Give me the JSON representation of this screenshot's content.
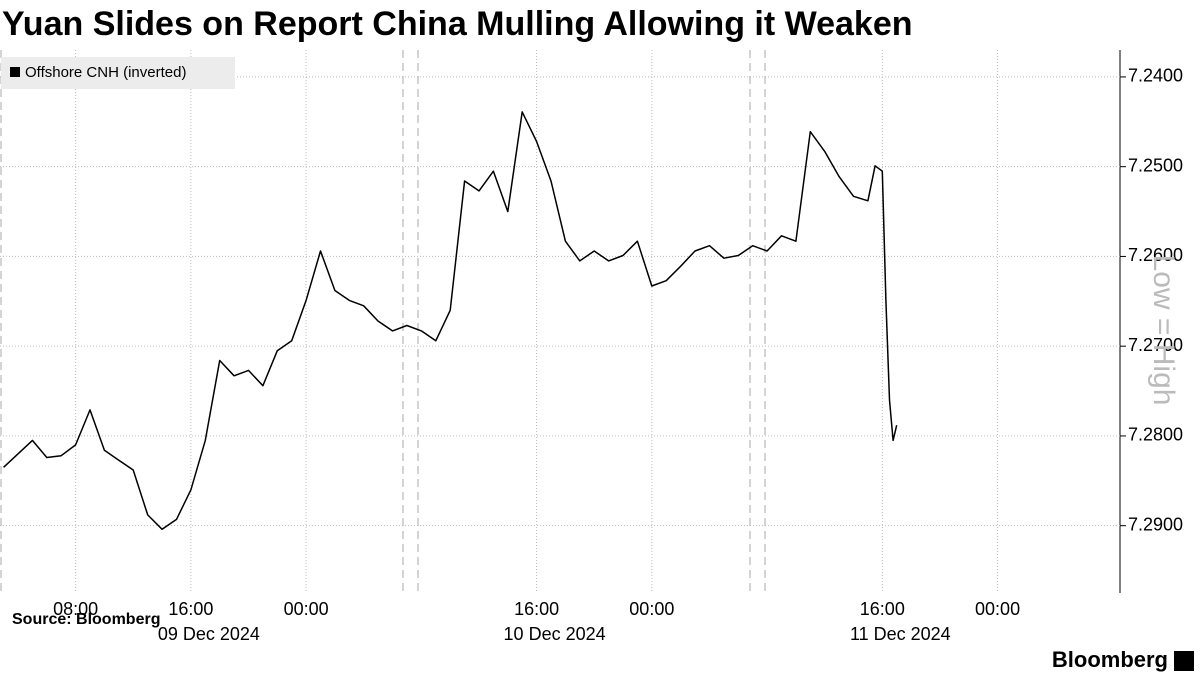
{
  "chart_data": {
    "type": "line",
    "title": "Yuan Slides on Report China Mulling Allowing it Weaken",
    "source": "Source: Bloomberg",
    "brand": "Bloomberg",
    "annotation": "Low = High",
    "legend": "top-left",
    "grid": true,
    "xlim": [
      "2024-12-09T02:45",
      "2024-12-12T08:30"
    ],
    "xticks": [
      {
        "value": "2024-12-09T08:00",
        "label": "08:00"
      },
      {
        "value": "2024-12-09T16:00",
        "label": "16:00"
      },
      {
        "value": "2024-12-10T00:00",
        "label": "00:00"
      },
      {
        "value": "2024-12-10T16:00",
        "label": "16:00"
      },
      {
        "value": "2024-12-11T00:00",
        "label": "00:00"
      },
      {
        "value": "2024-12-11T16:00",
        "label": "16:00"
      },
      {
        "value": "2024-12-12T00:00",
        "label": "00:00"
      }
    ],
    "x_dates": [
      {
        "value": "2024-12-09T16:00",
        "label": "09 Dec 2024"
      },
      {
        "value": "2024-12-10T16:00",
        "label": "10 Dec 2024"
      },
      {
        "value": "2024-12-11T16:00",
        "label": "11 Dec 2024"
      }
    ],
    "ylim": [
      7.2975,
      7.237
    ],
    "yticks": [
      {
        "value": 7.24,
        "label": "7.2400"
      },
      {
        "value": 7.25,
        "label": "7.2500"
      },
      {
        "value": 7.26,
        "label": "7.2600"
      },
      {
        "value": 7.27,
        "label": "7.2700"
      },
      {
        "value": 7.28,
        "label": "7.2800"
      },
      {
        "value": 7.29,
        "label": "7.2900"
      }
    ],
    "x": [
      "2024-12-09T03:00",
      "2024-12-09T05:00",
      "2024-12-09T06:00",
      "2024-12-09T07:00",
      "2024-12-09T08:00",
      "2024-12-09T09:00",
      "2024-12-09T10:00",
      "2024-12-09T11:00",
      "2024-12-09T12:00",
      "2024-12-09T13:00",
      "2024-12-09T14:00",
      "2024-12-09T15:00",
      "2024-12-09T16:00",
      "2024-12-09T17:00",
      "2024-12-09T18:00",
      "2024-12-09T19:00",
      "2024-12-09T20:00",
      "2024-12-09T21:00",
      "2024-12-09T22:00",
      "2024-12-09T23:00",
      "2024-12-10T00:00",
      "2024-12-10T01:00",
      "2024-12-10T02:00",
      "2024-12-10T03:00",
      "2024-12-10T04:00",
      "2024-12-10T05:00",
      "2024-12-10T06:00",
      "2024-12-10T07:00",
      "2024-12-10T08:00",
      "2024-12-10T09:00",
      "2024-12-10T10:00",
      "2024-12-10T11:00",
      "2024-12-10T12:00",
      "2024-12-10T13:00",
      "2024-12-10T14:00",
      "2024-12-10T15:00",
      "2024-12-10T16:00",
      "2024-12-10T17:00",
      "2024-12-10T18:00",
      "2024-12-10T19:00",
      "2024-12-10T20:00",
      "2024-12-10T21:00",
      "2024-12-10T22:00",
      "2024-12-10T23:00",
      "2024-12-11T00:00",
      "2024-12-11T01:00",
      "2024-12-11T02:00",
      "2024-12-11T03:00",
      "2024-12-11T04:00",
      "2024-12-11T05:00",
      "2024-12-11T06:00",
      "2024-12-11T07:00",
      "2024-12-11T08:00",
      "2024-12-11T09:00",
      "2024-12-11T10:00",
      "2024-12-11T11:00",
      "2024-12-11T12:00",
      "2024-12-11T13:00",
      "2024-12-11T14:00",
      "2024-12-11T15:00",
      "2024-12-11T15:30",
      "2024-12-11T16:00",
      "2024-12-11T16:15",
      "2024-12-11T16:30",
      "2024-12-11T16:45",
      "2024-12-11T17:00"
    ],
    "series": [
      {
        "name": "Offshore CNH (inverted)",
        "color": "#000000",
        "values": [
          7.2835,
          7.2805,
          7.2824,
          7.2822,
          7.281,
          7.2771,
          7.2816,
          7.2827,
          7.2838,
          7.2888,
          7.2904,
          7.2893,
          7.286,
          7.2805,
          7.2716,
          7.2733,
          7.2727,
          7.2744,
          7.2705,
          7.2694,
          7.2649,
          7.2594,
          7.2638,
          7.2649,
          7.2655,
          7.2672,
          7.2683,
          7.2677,
          7.2683,
          7.2694,
          7.266,
          7.2516,
          7.2527,
          7.2505,
          7.255,
          7.2439,
          7.2472,
          7.2516,
          7.2583,
          7.2605,
          7.2594,
          7.2605,
          7.2599,
          7.2583,
          7.2633,
          7.2627,
          7.2611,
          7.2594,
          7.2588,
          7.2602,
          7.2599,
          7.2588,
          7.2594,
          7.2577,
          7.2583,
          7.2461,
          7.2483,
          7.2511,
          7.2533,
          7.2538,
          7.2499,
          7.2505,
          7.2649,
          7.276,
          7.2805,
          7.2788
        ]
      }
    ]
  }
}
